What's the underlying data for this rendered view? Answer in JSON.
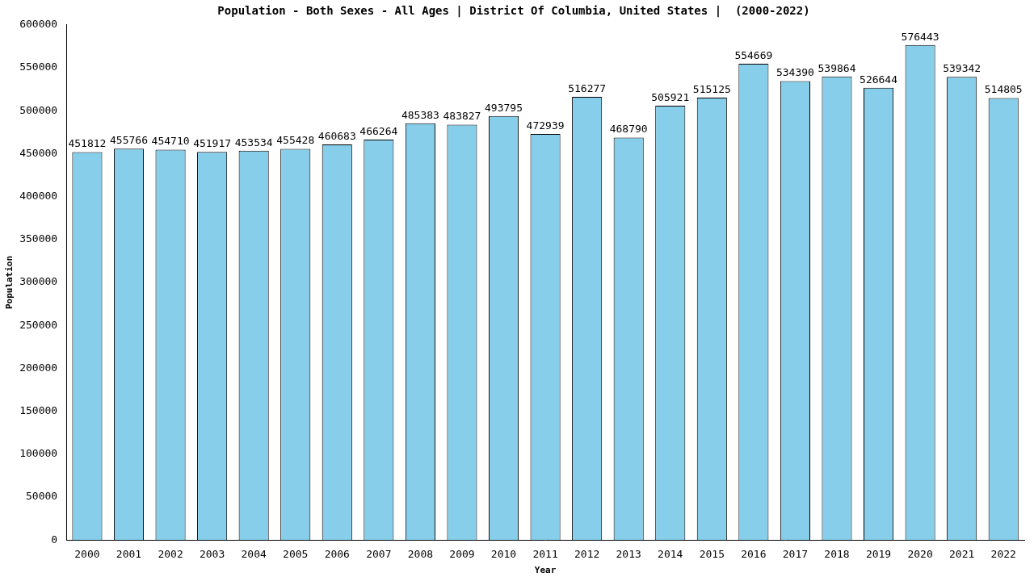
{
  "chart_data": {
    "type": "bar",
    "title": "Population - Both Sexes - All Ages | District Of Columbia, United States |  (2000-2022)",
    "x_label": "Year",
    "y_label": "Population",
    "categories": [
      "2000",
      "2001",
      "2002",
      "2003",
      "2004",
      "2005",
      "2006",
      "2007",
      "2008",
      "2009",
      "2010",
      "2011",
      "2012",
      "2013",
      "2014",
      "2015",
      "2016",
      "2017",
      "2018",
      "2019",
      "2020",
      "2021",
      "2022"
    ],
    "values": [
      451812,
      455766,
      454710,
      451917,
      453534,
      455428,
      460683,
      466264,
      485383,
      483827,
      493795,
      472939,
      516277,
      468790,
      505921,
      515125,
      554669,
      534390,
      539864,
      526644,
      576443,
      539342,
      514805
    ],
    "color": "#87ceeb",
    "ylim": [
      0,
      600000
    ],
    "yticks": [
      0,
      50000,
      100000,
      150000,
      200000,
      250000,
      300000,
      350000,
      400000,
      450000,
      500000,
      550000,
      600000
    ],
    "grid": false,
    "data_labels": true
  }
}
